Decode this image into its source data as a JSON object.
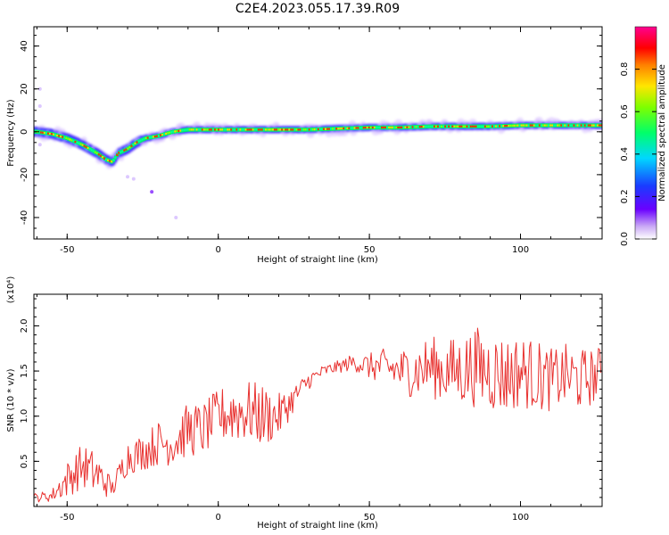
{
  "title": "C2E4.2023.055.17.39.R09",
  "colors": {
    "snr_line": "#e8312f",
    "axis": "#000000",
    "background": "#ffffff"
  },
  "chart_data": [
    {
      "type": "heatmap",
      "xlabel": "Height of straight line (km)",
      "ylabel": "Frequency (Hz)",
      "xlim": [
        -61,
        127
      ],
      "ylim": [
        -50,
        49
      ],
      "xticks": [
        -50,
        0,
        50,
        100
      ],
      "yticks": [
        -40,
        -20,
        0,
        20,
        40
      ],
      "colorbar": {
        "label": "Normalized spectral amplitude",
        "range": [
          0,
          1
        ],
        "ticks": [
          0.0,
          0.2,
          0.4,
          0.6,
          0.8
        ],
        "colormap": "rainbow (white-purple-blue-cyan-green-yellow-red-magenta)"
      },
      "ridge_frequency": {
        "x": [
          -60,
          -55,
          -50,
          -45,
          -40,
          -37,
          -35,
          -33,
          -30,
          -27,
          -24,
          -20,
          -15,
          -10,
          -5,
          0,
          10,
          20,
          30,
          40,
          50,
          60,
          70,
          80,
          90,
          100,
          110,
          120,
          127
        ],
        "y": [
          0,
          -1,
          -3,
          -6,
          -10,
          -13,
          -14,
          -10,
          -8,
          -5,
          -3,
          -2,
          0,
          1,
          1,
          1,
          1,
          1,
          1,
          1.5,
          2,
          2,
          2.5,
          2.5,
          2.5,
          3,
          3,
          3,
          3
        ]
      }
    },
    {
      "type": "line",
      "xlabel": "Height of straight line (km)",
      "ylabel": "SNR (10 * v/v)",
      "yscale_label": "(x10⁴)",
      "xlim": [
        -61,
        127
      ],
      "ylim": [
        0,
        2.35
      ],
      "xticks": [
        -50,
        0,
        50,
        100
      ],
      "yticks": [
        0.5,
        1.0,
        1.5,
        2.0
      ],
      "series": [
        {
          "color": "#e8312f",
          "x": [
            -60,
            -55,
            -50,
            -45,
            -40,
            -35,
            -30,
            -25,
            -20,
            -15,
            -10,
            -5,
            0,
            5,
            10,
            15,
            20,
            25,
            30,
            35,
            40,
            45,
            50,
            55,
            60,
            65,
            70,
            75,
            80,
            85,
            90,
            95,
            100,
            105,
            110,
            115,
            120,
            125,
            127
          ],
          "y": [
            0.1,
            0.12,
            0.3,
            0.45,
            0.35,
            0.2,
            0.55,
            0.6,
            0.7,
            0.7,
            0.85,
            0.85,
            1.0,
            1.05,
            1.05,
            1.0,
            1.0,
            1.2,
            1.4,
            1.5,
            1.55,
            1.6,
            1.55,
            1.55,
            1.5,
            1.5,
            1.55,
            1.5,
            1.5,
            1.55,
            1.5,
            1.45,
            1.5,
            1.45,
            1.4,
            1.45,
            1.4,
            1.45,
            1.5
          ],
          "noise_amplitude": [
            0.05,
            0.07,
            0.2,
            0.25,
            0.25,
            0.1,
            0.2,
            0.2,
            0.25,
            0.25,
            0.3,
            0.3,
            0.3,
            0.35,
            0.35,
            0.35,
            0.25,
            0.15,
            0.1,
            0.07,
            0.07,
            0.1,
            0.15,
            0.2,
            0.25,
            0.3,
            0.35,
            0.35,
            0.4,
            0.45,
            0.45,
            0.45,
            0.4,
            0.4,
            0.35,
            0.35,
            0.35,
            0.3,
            0.3
          ]
        }
      ]
    }
  ]
}
